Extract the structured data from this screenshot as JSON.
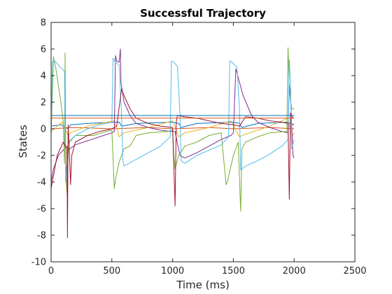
{
  "chart_data": {
    "type": "line",
    "title": "Successful Trajectory",
    "xlabel": "Time (ms)",
    "ylabel": "States",
    "xlim": [
      0,
      2500
    ],
    "ylim": [
      -10,
      8
    ],
    "xticks": [
      0,
      500,
      1000,
      1500,
      2000,
      2500
    ],
    "yticks": [
      -10,
      -8,
      -6,
      -4,
      -2,
      0,
      2,
      4,
      6,
      8
    ],
    "grid": false,
    "legend": "none",
    "series": [
      {
        "color": "#0072BD",
        "points": [
          [
            0,
            0.2
          ],
          [
            80,
            0.3
          ],
          [
            140,
            0.0
          ],
          [
            160,
            0.3
          ],
          [
            300,
            0.4
          ],
          [
            520,
            0.5
          ],
          [
            560,
            0.5
          ],
          [
            580,
            0.2
          ],
          [
            700,
            0.4
          ],
          [
            1000,
            0.5
          ],
          [
            1050,
            0.4
          ],
          [
            1070,
            0.1
          ],
          [
            1200,
            0.4
          ],
          [
            1500,
            0.5
          ],
          [
            1550,
            0.4
          ],
          [
            1570,
            0.1
          ],
          [
            1700,
            0.4
          ],
          [
            1950,
            0.5
          ],
          [
            1990,
            0.3
          ],
          [
            2000,
            0.4
          ]
        ]
      },
      {
        "color": "#D95319",
        "points": [
          [
            0,
            0.0
          ],
          [
            100,
            0.05
          ],
          [
            200,
            0.1
          ],
          [
            500,
            0.0
          ],
          [
            800,
            0.1
          ],
          [
            1000,
            0.0
          ],
          [
            1300,
            0.1
          ],
          [
            1500,
            0.0
          ],
          [
            1800,
            0.1
          ],
          [
            2000,
            0.0
          ]
        ]
      },
      {
        "color": "#EDB120",
        "points": [
          [
            0,
            -0.2
          ],
          [
            90,
            0.5
          ],
          [
            140,
            -0.5
          ],
          [
            160,
            -0.3
          ],
          [
            300,
            0.2
          ],
          [
            520,
            0.6
          ],
          [
            560,
            -0.6
          ],
          [
            600,
            -0.3
          ],
          [
            800,
            0.1
          ],
          [
            1000,
            0.6
          ],
          [
            1050,
            -0.6
          ],
          [
            1100,
            -0.3
          ],
          [
            1300,
            0.1
          ],
          [
            1480,
            0.6
          ],
          [
            1550,
            -0.6
          ],
          [
            1600,
            -0.4
          ],
          [
            1800,
            0.2
          ],
          [
            1950,
            0.8
          ],
          [
            1980,
            -0.6
          ],
          [
            2000,
            -0.3
          ]
        ]
      },
      {
        "color": "#7E2F8E",
        "points": [
          [
            0,
            -4.0
          ],
          [
            20,
            -3.0
          ],
          [
            60,
            -2.0
          ],
          [
            130,
            -1.3
          ],
          [
            140,
            -1.6
          ],
          [
            200,
            -1.2
          ],
          [
            300,
            -0.9
          ],
          [
            400,
            -0.6
          ],
          [
            500,
            -0.3
          ],
          [
            520,
            -0.2
          ],
          [
            530,
            5.5
          ],
          [
            540,
            5.1
          ],
          [
            560,
            5.0
          ],
          [
            570,
            6.0
          ],
          [
            575,
            3.5
          ],
          [
            600,
            2.0
          ],
          [
            650,
            1.0
          ],
          [
            700,
            0.4
          ],
          [
            800,
            0.1
          ],
          [
            900,
            -0.1
          ],
          [
            980,
            -0.2
          ],
          [
            1000,
            -0.2
          ],
          [
            1020,
            -0.2
          ],
          [
            1060,
            -2.0
          ],
          [
            1100,
            -2.2
          ],
          [
            1200,
            -1.8
          ],
          [
            1300,
            -1.3
          ],
          [
            1400,
            -0.8
          ],
          [
            1480,
            -0.5
          ],
          [
            1500,
            -0.3
          ],
          [
            1520,
            4.5
          ],
          [
            1530,
            4.2
          ],
          [
            1550,
            3.5
          ],
          [
            1580,
            2.5
          ],
          [
            1650,
            1.0
          ],
          [
            1700,
            0.5
          ],
          [
            1800,
            0.1
          ],
          [
            1900,
            -0.2
          ],
          [
            1950,
            -0.3
          ],
          [
            1960,
            3.3
          ],
          [
            1970,
            2.5
          ],
          [
            1990,
            -2.0
          ],
          [
            2000,
            -2.2
          ]
        ]
      },
      {
        "color": "#77AC30",
        "points": [
          [
            0,
            -0.5
          ],
          [
            20,
            5.4
          ],
          [
            40,
            4.5
          ],
          [
            80,
            2.0
          ],
          [
            100,
            0.5
          ],
          [
            110,
            -2.6
          ],
          [
            115,
            5.7
          ],
          [
            120,
            -3.0
          ],
          [
            130,
            -4.8
          ],
          [
            140,
            -2.0
          ],
          [
            150,
            -1.0
          ],
          [
            200,
            -0.5
          ],
          [
            350,
            -0.5
          ],
          [
            450,
            -0.2
          ],
          [
            500,
            -0.1
          ],
          [
            520,
            -4.5
          ],
          [
            530,
            -3.8
          ],
          [
            560,
            -2.5
          ],
          [
            600,
            -1.5
          ],
          [
            650,
            -1.3
          ],
          [
            700,
            -0.5
          ],
          [
            800,
            -0.3
          ],
          [
            960,
            -0.2
          ],
          [
            1000,
            -0.1
          ],
          [
            1010,
            -2.0
          ],
          [
            1020,
            -3.0
          ],
          [
            1050,
            -2.0
          ],
          [
            1100,
            -1.3
          ],
          [
            1200,
            -1.0
          ],
          [
            1300,
            -0.5
          ],
          [
            1400,
            -0.3
          ],
          [
            1440,
            -4.2
          ],
          [
            1450,
            -4.0
          ],
          [
            1500,
            -2.0
          ],
          [
            1540,
            -1.0
          ],
          [
            1560,
            -6.2
          ],
          [
            1570,
            -1.5
          ],
          [
            1600,
            -1.0
          ],
          [
            1700,
            -0.6
          ],
          [
            1800,
            -0.3
          ],
          [
            1940,
            -0.2
          ],
          [
            1950,
            6.1
          ],
          [
            1960,
            3.0
          ],
          [
            1980,
            1.5
          ],
          [
            2000,
            1.5
          ]
        ]
      },
      {
        "color": "#4DBEEE",
        "points": [
          [
            0,
            -1.0
          ],
          [
            10,
            5.0
          ],
          [
            20,
            5.2
          ],
          [
            60,
            4.8
          ],
          [
            110,
            4.3
          ],
          [
            120,
            -4.0
          ],
          [
            140,
            -1.0
          ],
          [
            200,
            -0.5
          ],
          [
            300,
            0.0
          ],
          [
            400,
            0.3
          ],
          [
            500,
            0.5
          ],
          [
            510,
            5.3
          ],
          [
            530,
            5.0
          ],
          [
            560,
            4.8
          ],
          [
            580,
            1.0
          ],
          [
            590,
            -2.3
          ],
          [
            600,
            -2.8
          ],
          [
            700,
            -2.3
          ],
          [
            800,
            -1.8
          ],
          [
            900,
            -1.3
          ],
          [
            980,
            -0.6
          ],
          [
            990,
            5.1
          ],
          [
            1010,
            5.0
          ],
          [
            1040,
            4.7
          ],
          [
            1060,
            1.2
          ],
          [
            1070,
            -2.4
          ],
          [
            1100,
            -2.6
          ],
          [
            1200,
            -2.0
          ],
          [
            1300,
            -1.6
          ],
          [
            1400,
            -1.2
          ],
          [
            1460,
            -0.6
          ],
          [
            1470,
            5.1
          ],
          [
            1490,
            5.0
          ],
          [
            1530,
            4.6
          ],
          [
            1550,
            1.5
          ],
          [
            1560,
            -3.1
          ],
          [
            1600,
            -2.8
          ],
          [
            1700,
            -2.4
          ],
          [
            1800,
            -1.9
          ],
          [
            1900,
            -1.3
          ],
          [
            1950,
            -0.8
          ],
          [
            1960,
            5.2
          ],
          [
            1970,
            3.5
          ],
          [
            1980,
            -1.5
          ],
          [
            2000,
            -0.8
          ]
        ]
      },
      {
        "color": "#A2142F",
        "points": [
          [
            0,
            -4.5
          ],
          [
            10,
            -4.0
          ],
          [
            50,
            -2.0
          ],
          [
            100,
            -1.0
          ],
          [
            130,
            -1.5
          ],
          [
            135,
            -8.2
          ],
          [
            140,
            0.3
          ],
          [
            150,
            -1.5
          ],
          [
            160,
            -4.2
          ],
          [
            170,
            -2.0
          ],
          [
            200,
            -1.0
          ],
          [
            300,
            -0.5
          ],
          [
            400,
            -0.2
          ],
          [
            500,
            0.0
          ],
          [
            540,
            0.2
          ],
          [
            580,
            3.0
          ],
          [
            600,
            2.5
          ],
          [
            650,
            1.5
          ],
          [
            700,
            0.8
          ],
          [
            800,
            0.4
          ],
          [
            900,
            0.2
          ],
          [
            1000,
            0.1
          ],
          [
            1020,
            -5.8
          ],
          [
            1030,
            0.5
          ],
          [
            1040,
            1.0
          ],
          [
            1100,
            0.9
          ],
          [
            1200,
            0.8
          ],
          [
            1300,
            0.6
          ],
          [
            1400,
            0.4
          ],
          [
            1500,
            0.3
          ],
          [
            1550,
            0.2
          ],
          [
            1600,
            0.9
          ],
          [
            1700,
            0.8
          ],
          [
            1800,
            0.6
          ],
          [
            1900,
            0.5
          ],
          [
            1950,
            0.4
          ],
          [
            1960,
            -5.3
          ],
          [
            1970,
            1.2
          ],
          [
            1990,
            0.8
          ],
          [
            2000,
            0.8
          ]
        ]
      },
      {
        "color": "#0072BD",
        "points": [
          [
            0,
            1.0
          ],
          [
            500,
            1.0
          ],
          [
            1000,
            1.0
          ],
          [
            1500,
            1.0
          ],
          [
            2000,
            1.0
          ]
        ]
      },
      {
        "color": "#D95319",
        "points": [
          [
            0,
            0.8
          ],
          [
            500,
            0.8
          ],
          [
            1000,
            0.8
          ],
          [
            1500,
            0.8
          ],
          [
            2000,
            0.8
          ]
        ]
      }
    ]
  }
}
